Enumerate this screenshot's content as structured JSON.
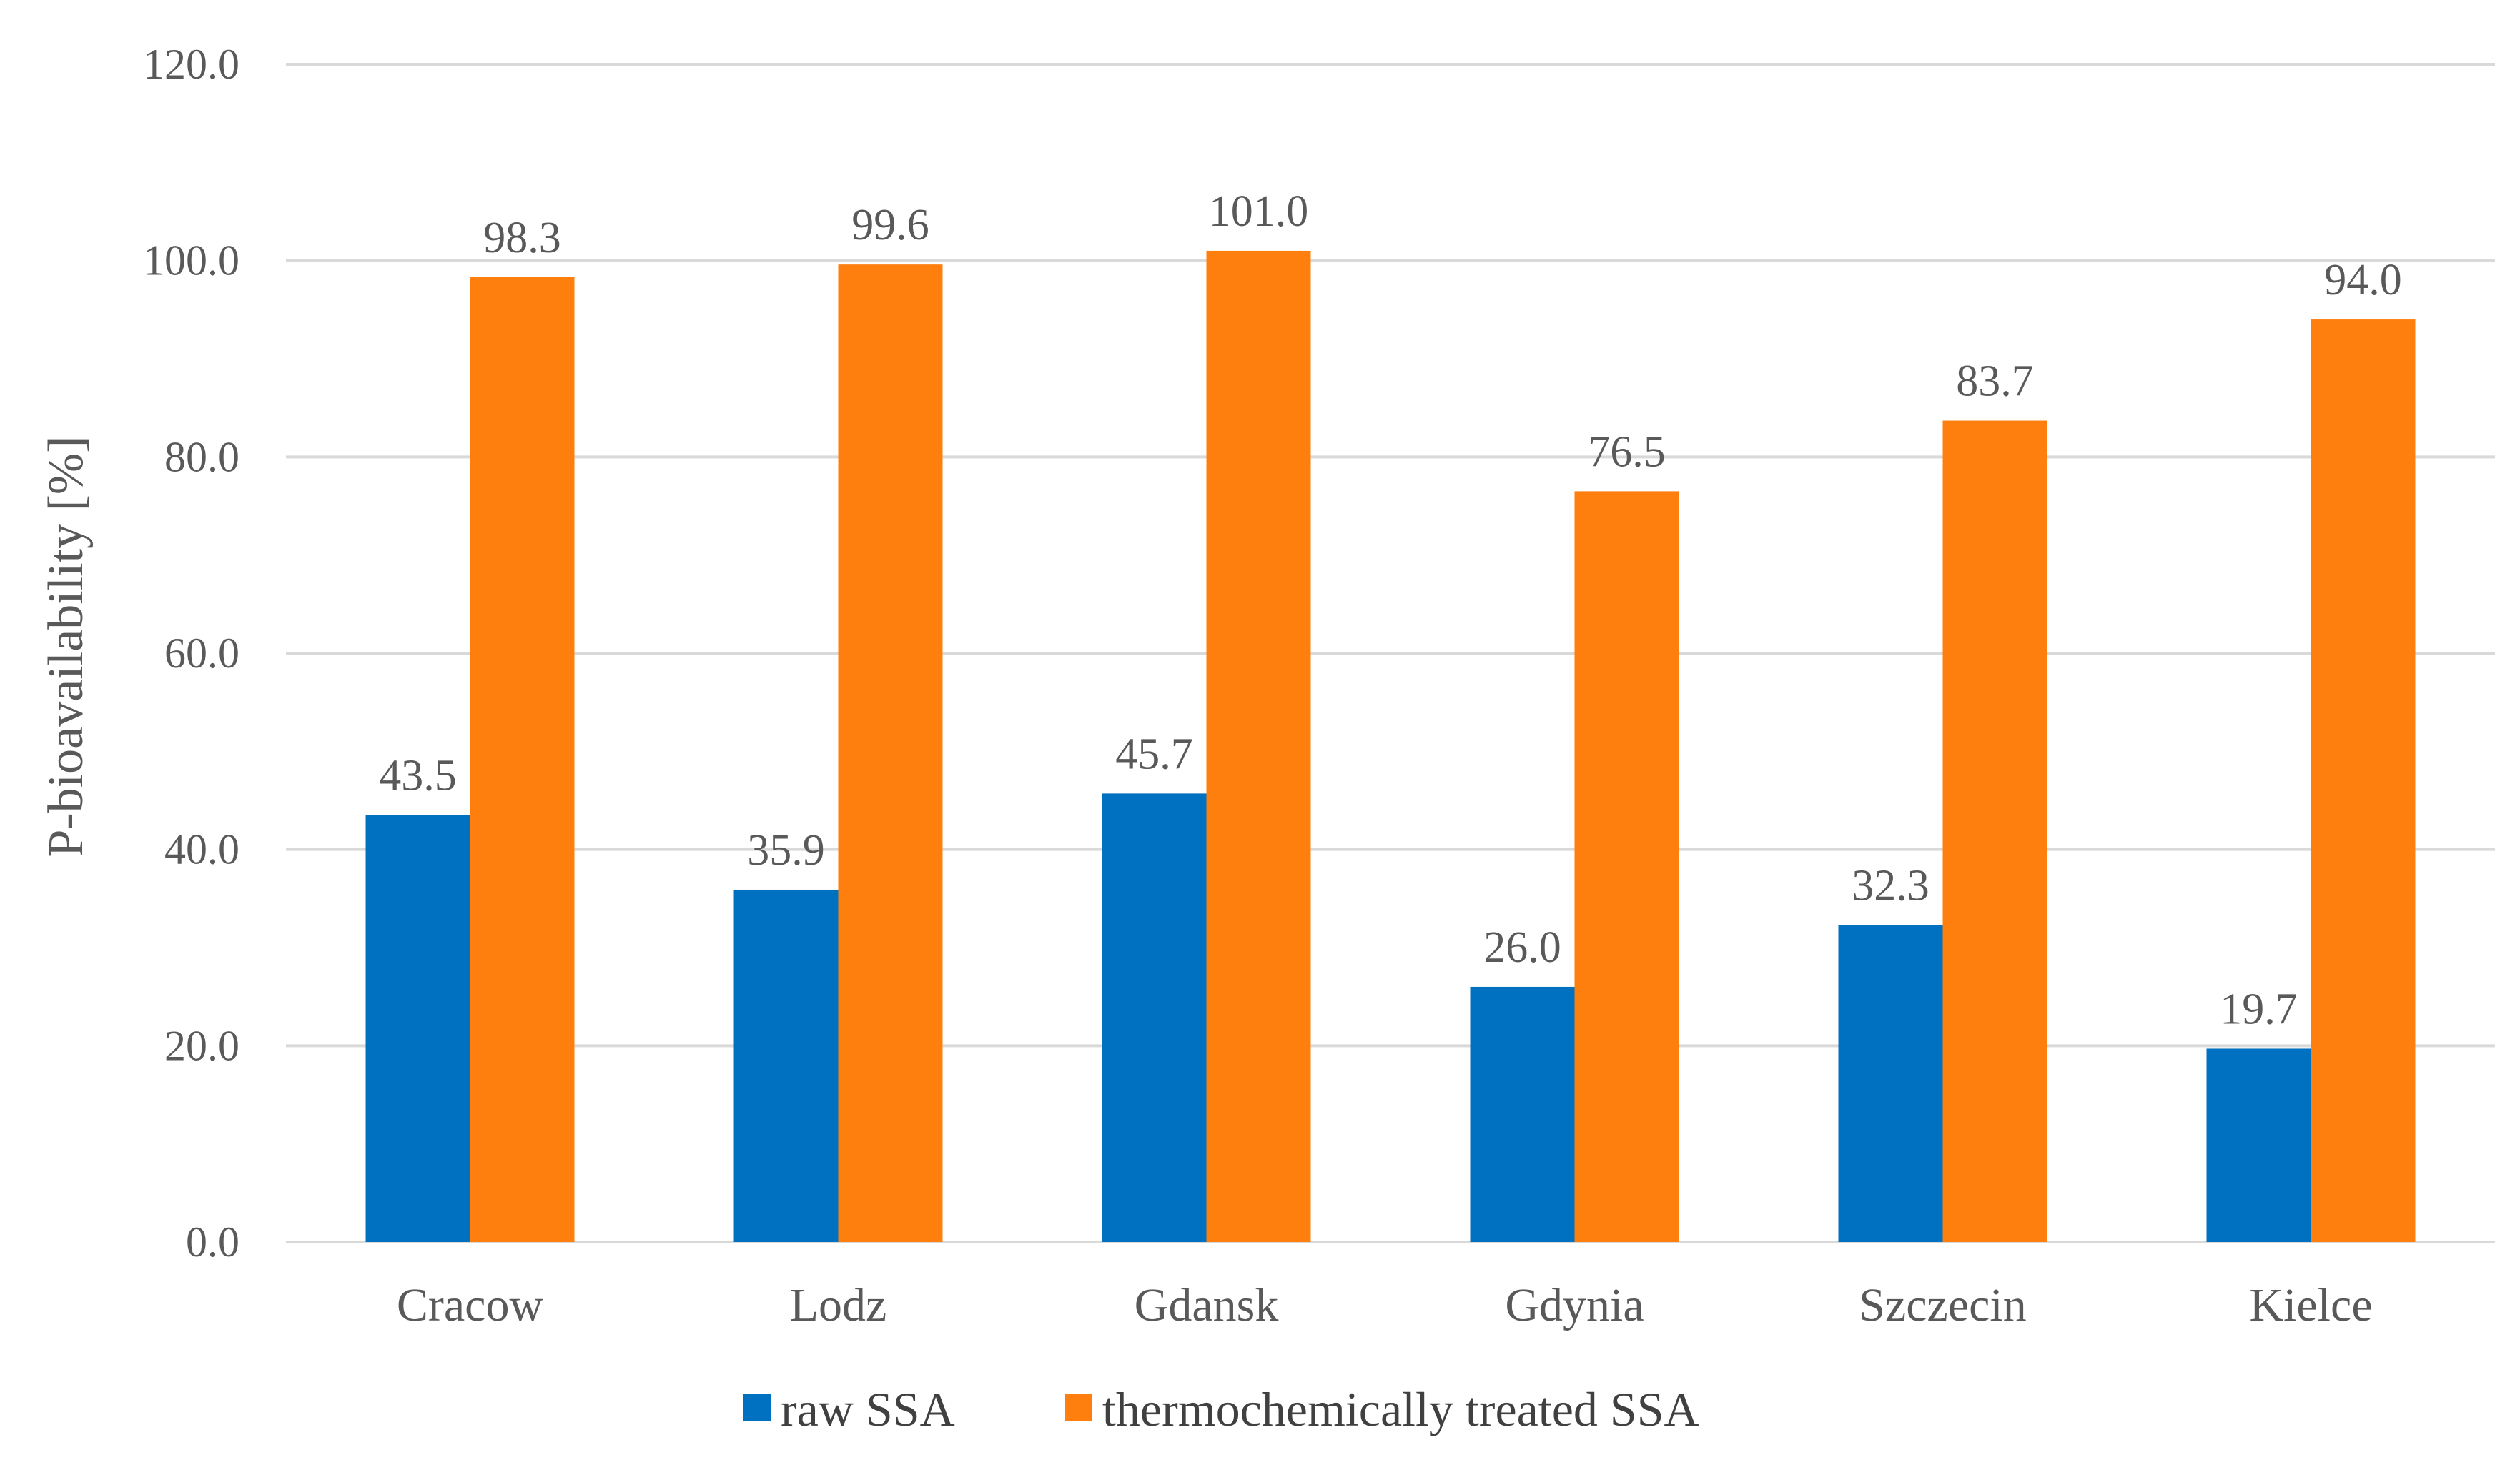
{
  "chart_data": {
    "type": "bar",
    "title": "",
    "xlabel": "",
    "ylabel": "P-bioavailability [%]",
    "ylim": [
      0,
      120
    ],
    "ytick_step": 20,
    "ytick_labels": [
      "0.0",
      "20.0",
      "40.0",
      "60.0",
      "80.0",
      "100.0",
      "120.0"
    ],
    "grid": true,
    "legend_position": "bottom",
    "categories": [
      "Cracow",
      "Lodz",
      "Gdansk",
      "Gdynia",
      "Szczecin",
      "Kielce"
    ],
    "series": [
      {
        "name": "raw SSA",
        "color": "#0070C0",
        "values": [
          43.5,
          35.9,
          45.7,
          26.0,
          32.3,
          19.7
        ],
        "labels": [
          "43.5",
          "35.9",
          "45.7",
          "26.0",
          "32.3",
          "19.7"
        ]
      },
      {
        "name": "thermochemically treated SSA",
        "color": "#FF7F0E",
        "values": [
          98.3,
          99.6,
          101.0,
          76.5,
          83.7,
          94.0
        ],
        "labels": [
          "98.3",
          "99.6",
          "101.0",
          "76.5",
          "83.7",
          "94.0"
        ]
      }
    ]
  }
}
